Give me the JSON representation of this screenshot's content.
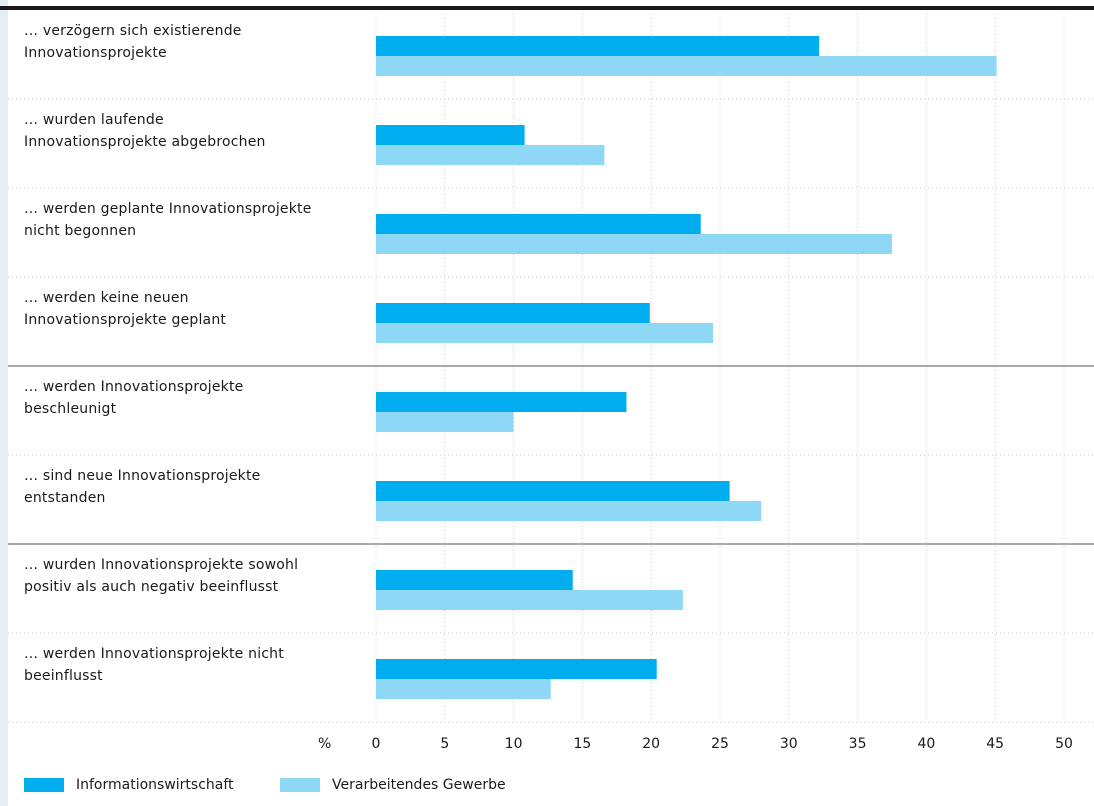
{
  "colors": {
    "info": "#00aeef",
    "verarb": "#8fd8f5",
    "grid": "#c8c8c8",
    "separator": "#555555"
  },
  "chart_data": {
    "type": "bar",
    "orientation": "horizontal",
    "categories": [
      "… verzögern sich existierende Innovationsprojekte",
      "… wurden laufende Innovationsprojekte abgebrochen",
      "… werden geplante Innovationsprojekte nicht begonnen",
      "… werden keine neuen Innovationsprojekte geplant",
      "… werden Innovationsprojekte beschleunigt",
      "… sind neue Innovationsprojekte entstanden",
      "… wurden Innovationsprojekte sowohl positiv als auch negativ beeinflusst",
      "… werden Innovationsprojekte nicht beeinflusst"
    ],
    "category_lines": [
      [
        "… verzögern sich existierende",
        "Innovationsprojekte"
      ],
      [
        "… wurden laufende",
        "Innovationsprojekte abgebrochen"
      ],
      [
        "… werden geplante Innovationsprojekte",
        "nicht begonnen"
      ],
      [
        "… werden keine neuen",
        "Innovationsprojekte geplant"
      ],
      [
        "… werden Innovationsprojekte",
        "beschleunigt"
      ],
      [
        "… sind neue Innovationsprojekte",
        "entstanden"
      ],
      [
        "… wurden Innovationsprojekte sowohl",
        "positiv als auch negativ beeinflusst"
      ],
      [
        "… werden Innovationsprojekte nicht",
        "beeinflusst"
      ]
    ],
    "series": [
      {
        "name": "Informationswirtschaft",
        "values": [
          32.2,
          10.8,
          23.6,
          19.9,
          18.2,
          25.7,
          14.3,
          20.4
        ]
      },
      {
        "name": "Verarbeitendes Gewerbe",
        "values": [
          45.1,
          16.6,
          37.5,
          24.5,
          10.0,
          28.0,
          22.3,
          12.7
        ]
      }
    ],
    "xlim": [
      0,
      50
    ],
    "xticks": [
      0,
      5,
      10,
      15,
      20,
      25,
      30,
      35,
      40,
      45,
      50
    ],
    "xunit": "%",
    "group_separators_after": [
      3,
      5
    ],
    "grid": true,
    "legend": "bottom-left"
  }
}
